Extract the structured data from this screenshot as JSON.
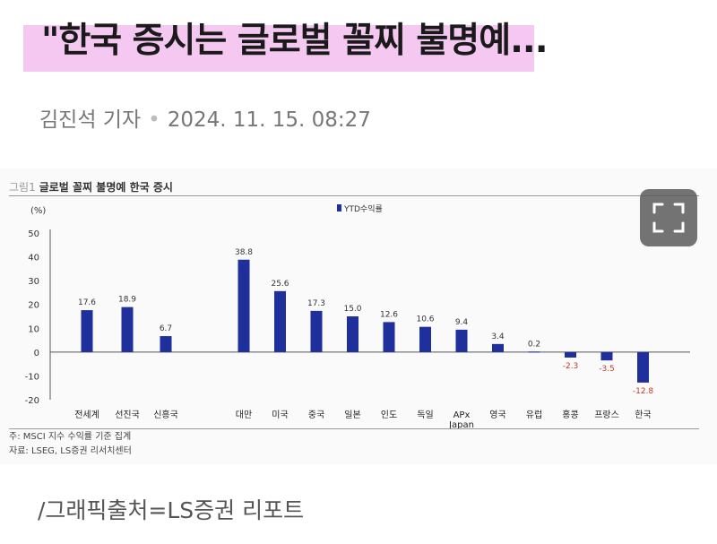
{
  "article": {
    "headline": "\"한국 증시는 글로벌 꼴찌 불명예...",
    "reporter": "김진석 기자",
    "byline_separator": "•",
    "datetime": "2024. 11. 15. 08:27",
    "caption": "/그래픽출처=LS증권 리포트"
  },
  "figure": {
    "label": "그림1",
    "title": "글로벌 꼴찌 불명예 한국 증시",
    "footnote_1": "주: MSCI 지수 수익률 기준 집계",
    "footnote_2": "자료: LSEG, LS증권 리서치센터"
  },
  "chart_data": {
    "type": "bar",
    "ylabel": "(%)",
    "ylim": [
      -20,
      50
    ],
    "yticks": [
      -20,
      -10,
      0,
      10,
      20,
      30,
      40,
      50
    ],
    "legend": "YTD수익률",
    "legend_position": "top-center",
    "grid": false,
    "categories": [
      "전세계",
      "선진국",
      "신흥국",
      "대만",
      "미국",
      "중국",
      "일본",
      "인도",
      "독일",
      "APx Japan",
      "영국",
      "유럽",
      "홍콩",
      "프랑스",
      "한국"
    ],
    "values": [
      17.6,
      18.9,
      6.7,
      38.8,
      25.6,
      17.3,
      15.0,
      12.6,
      10.6,
      9.4,
      3.4,
      0.2,
      -2.3,
      -3.5,
      -12.8
    ],
    "value_labels": [
      "17.6",
      "18.9",
      "6.7",
      "38.8",
      "25.6",
      "17.3",
      "15.0",
      "12.6",
      "10.6",
      "9.4",
      "3.4",
      "0.2",
      "-2.3",
      "-3.5",
      "-12.8"
    ],
    "bar_color": "#1f2f9c",
    "negative_label_color": "#c0392b"
  },
  "expand_icon": "expand-icon"
}
